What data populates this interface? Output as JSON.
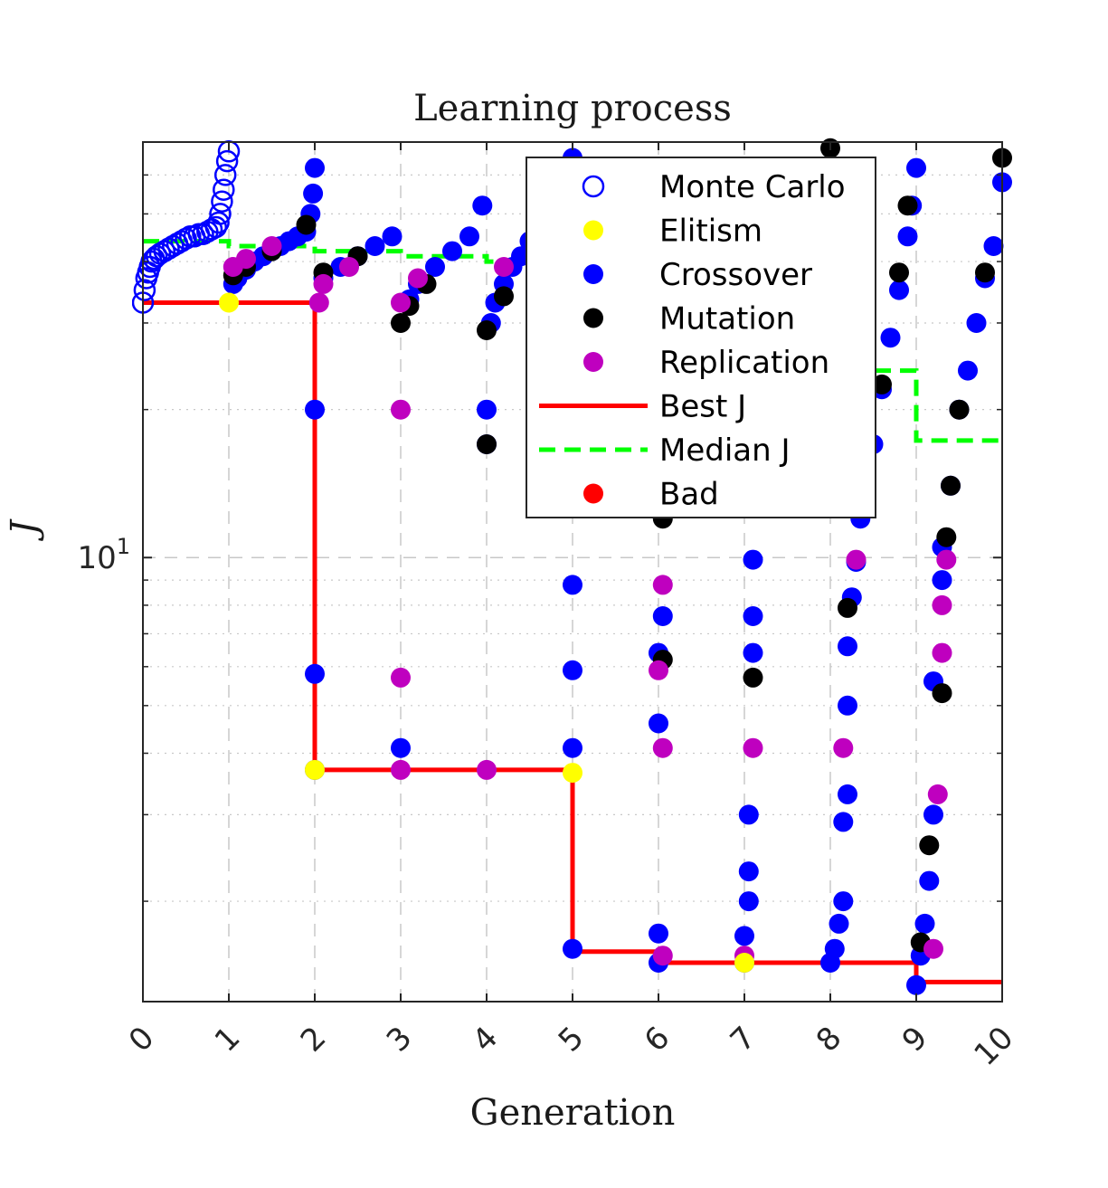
{
  "chart_data": {
    "type": "scatter",
    "title": "Learning process",
    "xlabel": "Generation",
    "ylabel": "J",
    "xlim": [
      0,
      10
    ],
    "ylim": [
      1.25,
      70
    ],
    "yscale": "log",
    "grid": true,
    "legend_placement": "top-right",
    "x_ticks": [
      {
        "value": 0,
        "label": "0"
      },
      {
        "value": 1,
        "label": "1"
      },
      {
        "value": 2,
        "label": "2"
      },
      {
        "value": 3,
        "label": "3"
      },
      {
        "value": 4,
        "label": "4"
      },
      {
        "value": 5,
        "label": "5"
      },
      {
        "value": 6,
        "label": "6"
      },
      {
        "value": 7,
        "label": "7"
      },
      {
        "value": 8,
        "label": "8"
      },
      {
        "value": 9,
        "label": "9"
      },
      {
        "value": 10,
        "label": "10"
      }
    ],
    "y_ticks": [
      {
        "value": 10,
        "base": "10",
        "exp": "1"
      }
    ],
    "legend": [
      {
        "key": "mc",
        "label": "Monte Carlo",
        "marker": "open-circle",
        "color": "#0000ff"
      },
      {
        "key": "elitism",
        "label": "Elitism",
        "marker": "filled-circle",
        "color": "#ffff00"
      },
      {
        "key": "crossover",
        "label": "Crossover",
        "marker": "filled-circle",
        "color": "#0000ff"
      },
      {
        "key": "mutation",
        "label": "Mutation",
        "marker": "filled-circle",
        "color": "#000000"
      },
      {
        "key": "replication",
        "label": "Replication",
        "marker": "filled-circle",
        "color": "#bf00bf"
      },
      {
        "key": "best",
        "label": "Best J",
        "marker": "solid-line",
        "color": "#ff0000"
      },
      {
        "key": "median",
        "label": "Median J",
        "marker": "dashed-line",
        "color": "#00ff00"
      },
      {
        "key": "bad",
        "label": "Bad",
        "marker": "filled-circle",
        "color": "#ff0000"
      }
    ],
    "series": [
      {
        "name": "Best J",
        "type": "step-line",
        "color": "#ff0000",
        "points": [
          [
            0,
            33
          ],
          [
            2,
            33
          ],
          [
            2,
            3.7
          ],
          [
            5,
            3.7
          ],
          [
            5,
            1.58
          ],
          [
            6,
            1.58
          ],
          [
            6,
            1.5
          ],
          [
            9,
            1.5
          ],
          [
            9,
            1.37
          ],
          [
            10,
            1.37
          ]
        ]
      },
      {
        "name": "Median J",
        "type": "step-line",
        "color": "#00ff00",
        "points": [
          [
            0,
            44
          ],
          [
            1,
            44
          ],
          [
            1,
            43
          ],
          [
            2,
            43
          ],
          [
            2,
            42
          ],
          [
            3,
            42
          ],
          [
            3,
            41
          ],
          [
            4,
            41
          ],
          [
            4,
            40
          ],
          [
            5,
            40
          ],
          [
            5,
            38
          ],
          [
            6,
            38
          ],
          [
            6,
            36
          ],
          [
            7,
            36
          ],
          [
            7,
            33
          ],
          [
            8,
            33
          ],
          [
            8,
            24
          ],
          [
            9,
            24
          ],
          [
            9,
            17.3
          ],
          [
            10,
            17.3
          ]
        ]
      },
      {
        "name": "Monte Carlo",
        "type": "scatter",
        "color": "#0000ff",
        "points": [
          [
            0,
            33
          ],
          [
            0.02,
            35
          ],
          [
            0.04,
            37
          ],
          [
            0.06,
            38
          ],
          [
            0.08,
            39
          ],
          [
            0.1,
            40
          ],
          [
            0.13,
            40.5
          ],
          [
            0.16,
            41
          ],
          [
            0.2,
            41.5
          ],
          [
            0.25,
            42
          ],
          [
            0.3,
            42.5
          ],
          [
            0.35,
            43
          ],
          [
            0.4,
            43.5
          ],
          [
            0.45,
            44
          ],
          [
            0.5,
            44.5
          ],
          [
            0.55,
            45
          ],
          [
            0.6,
            45
          ],
          [
            0.65,
            45.5
          ],
          [
            0.7,
            45.5
          ],
          [
            0.75,
            46
          ],
          [
            0.8,
            46.5
          ],
          [
            0.85,
            47
          ],
          [
            0.88,
            48
          ],
          [
            0.9,
            50
          ],
          [
            0.92,
            53
          ],
          [
            0.94,
            56
          ],
          [
            0.96,
            60
          ],
          [
            0.98,
            64
          ],
          [
            1.0,
            67
          ]
        ]
      },
      {
        "name": "Crossover",
        "type": "scatter",
        "color": "#0000ff",
        "points": [
          [
            1.05,
            36
          ],
          [
            1.1,
            37
          ],
          [
            1.2,
            38.5
          ],
          [
            1.3,
            40
          ],
          [
            1.4,
            41
          ],
          [
            1.5,
            42
          ],
          [
            1.6,
            43
          ],
          [
            1.7,
            44
          ],
          [
            1.8,
            45
          ],
          [
            1.9,
            46
          ],
          [
            1.95,
            50
          ],
          [
            1.98,
            55
          ],
          [
            2.0,
            62
          ],
          [
            2.0,
            20
          ],
          [
            2.0,
            5.8
          ],
          [
            2.0,
            3.7
          ],
          [
            2.1,
            37
          ],
          [
            2.3,
            39
          ],
          [
            2.5,
            41
          ],
          [
            2.7,
            43
          ],
          [
            2.9,
            45
          ],
          [
            3.0,
            4.1
          ],
          [
            3.1,
            33.5
          ],
          [
            3.2,
            36
          ],
          [
            3.4,
            39
          ],
          [
            3.6,
            42
          ],
          [
            3.8,
            45
          ],
          [
            3.95,
            52
          ],
          [
            4.0,
            20
          ],
          [
            4.0,
            17
          ],
          [
            4.05,
            30
          ],
          [
            4.1,
            33
          ],
          [
            4.2,
            36
          ],
          [
            4.3,
            39
          ],
          [
            4.4,
            41
          ],
          [
            4.5,
            44
          ],
          [
            4.6,
            48
          ],
          [
            4.7,
            52
          ],
          [
            4.8,
            56
          ],
          [
            4.9,
            60
          ],
          [
            5.0,
            65
          ],
          [
            5.0,
            8.8
          ],
          [
            5.0,
            5.9
          ],
          [
            5.0,
            4.1
          ],
          [
            5.0,
            1.6
          ],
          [
            6.0,
            62
          ],
          [
            6.0,
            1.5
          ],
          [
            6.0,
            1.72
          ],
          [
            6.0,
            4.6
          ],
          [
            6.0,
            6.4
          ],
          [
            6.05,
            7.6
          ],
          [
            6.1,
            13
          ],
          [
            7.0,
            62
          ],
          [
            7.0,
            1.5
          ],
          [
            7.0,
            1.7
          ],
          [
            7.05,
            2.0
          ],
          [
            7.05,
            2.3
          ],
          [
            7.05,
            3.0
          ],
          [
            7.1,
            6.4
          ],
          [
            7.1,
            7.6
          ],
          [
            7.1,
            9.9
          ],
          [
            7.1,
            12.8
          ],
          [
            8.0,
            1.5
          ],
          [
            8.05,
            1.6
          ],
          [
            8.1,
            1.8
          ],
          [
            8.15,
            2.0
          ],
          [
            8.15,
            2.9
          ],
          [
            8.2,
            3.3
          ],
          [
            8.2,
            5.0
          ],
          [
            8.2,
            6.6
          ],
          [
            8.25,
            8.3
          ],
          [
            8.3,
            9.8
          ],
          [
            8.35,
            12
          ],
          [
            8.4,
            13.3
          ],
          [
            8.5,
            17
          ],
          [
            8.6,
            22
          ],
          [
            8.7,
            28
          ],
          [
            8.8,
            35
          ],
          [
            8.9,
            45
          ],
          [
            8.95,
            52
          ],
          [
            9.0,
            62
          ],
          [
            9.0,
            1.35
          ],
          [
            9.05,
            1.55
          ],
          [
            9.1,
            1.8
          ],
          [
            9.15,
            2.2
          ],
          [
            9.2,
            3.0
          ],
          [
            9.2,
            5.6
          ],
          [
            9.3,
            9.0
          ],
          [
            9.3,
            10.5
          ],
          [
            9.4,
            14
          ],
          [
            9.5,
            20
          ],
          [
            9.6,
            24
          ],
          [
            9.7,
            30
          ],
          [
            9.8,
            37
          ],
          [
            9.9,
            43
          ],
          [
            10.0,
            58
          ]
        ]
      },
      {
        "name": "Mutation",
        "type": "scatter",
        "color": "#000000",
        "points": [
          [
            1.05,
            37.5
          ],
          [
            1.2,
            39
          ],
          [
            1.5,
            42
          ],
          [
            1.9,
            47.5
          ],
          [
            2.1,
            38
          ],
          [
            2.5,
            41
          ],
          [
            3.0,
            30
          ],
          [
            3.1,
            32.5
          ],
          [
            3.3,
            36
          ],
          [
            4.0,
            17
          ],
          [
            4.0,
            29
          ],
          [
            4.2,
            34
          ],
          [
            6.05,
            12
          ],
          [
            6.05,
            6.2
          ],
          [
            7.1,
            5.7
          ],
          [
            8.0,
            68
          ],
          [
            8.2,
            7.9
          ],
          [
            8.4,
            13
          ],
          [
            8.6,
            22.5
          ],
          [
            8.8,
            38
          ],
          [
            8.9,
            52
          ],
          [
            9.05,
            1.65
          ],
          [
            9.15,
            2.6
          ],
          [
            9.3,
            5.3
          ],
          [
            9.35,
            11
          ],
          [
            9.4,
            14
          ],
          [
            9.5,
            20
          ],
          [
            9.8,
            38
          ],
          [
            10.0,
            65
          ]
        ]
      },
      {
        "name": "Replication",
        "type": "scatter",
        "color": "#bf00bf",
        "points": [
          [
            1.05,
            39
          ],
          [
            1.2,
            40.5
          ],
          [
            1.5,
            43
          ],
          [
            2.05,
            33
          ],
          [
            2.1,
            36
          ],
          [
            2.4,
            39
          ],
          [
            3.0,
            33
          ],
          [
            3.0,
            20
          ],
          [
            3.0,
            5.7
          ],
          [
            3.0,
            3.7
          ],
          [
            3.2,
            37
          ],
          [
            4.0,
            3.7
          ],
          [
            4.2,
            39
          ],
          [
            6.0,
            5.9
          ],
          [
            6.05,
            4.1
          ],
          [
            6.05,
            1.55
          ],
          [
            6.05,
            8.8
          ],
          [
            7.0,
            1.55
          ],
          [
            7.1,
            4.1
          ],
          [
            8.15,
            4.1
          ],
          [
            8.3,
            9.9
          ],
          [
            9.2,
            1.6
          ],
          [
            9.25,
            3.3
          ],
          [
            9.3,
            6.4
          ],
          [
            9.3,
            8.0
          ],
          [
            9.35,
            9.9
          ]
        ]
      },
      {
        "name": "Elitism",
        "type": "scatter",
        "color": "#ffff00",
        "points": [
          [
            1.0,
            33
          ],
          [
            2.0,
            3.7
          ],
          [
            5.0,
            3.65
          ],
          [
            7.0,
            1.5
          ]
        ]
      }
    ]
  }
}
